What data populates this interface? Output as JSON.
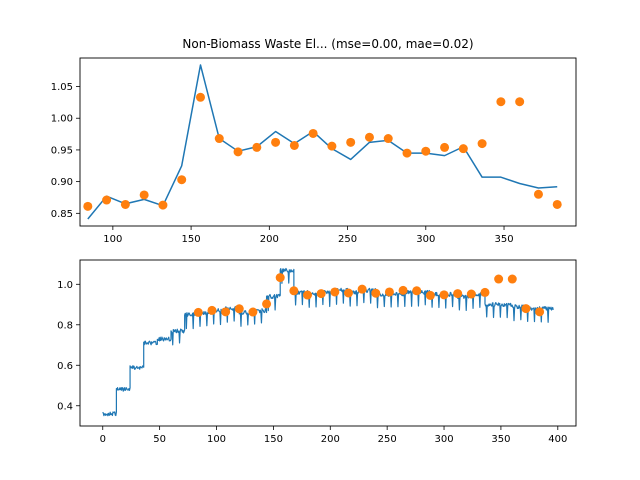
{
  "chart_data": [
    {
      "type": "line",
      "title": "Non-Biomass Waste El... (mse=0.00, mae=0.02)",
      "xlabel": "",
      "ylabel": "",
      "xlim": [
        79,
        396
      ],
      "ylim": [
        0.83,
        1.095
      ],
      "grid": false,
      "legend": "none",
      "xticks": [
        100,
        150,
        200,
        250,
        300,
        350
      ],
      "yticks": [
        0.85,
        0.9,
        0.95,
        1.0,
        1.05
      ],
      "ytick_labels": [
        "0.85",
        "0.90",
        "0.95",
        "1.00",
        "1.05"
      ],
      "series": [
        {
          "kind": "line",
          "color": "#1f77b4",
          "x": [
            84,
            96,
            108,
            120,
            132,
            144,
            156,
            168,
            180,
            192,
            204,
            216,
            228,
            240,
            252,
            264,
            276,
            288,
            300,
            312,
            324,
            336,
            348,
            360,
            372,
            384
          ],
          "y": [
            0.841,
            0.877,
            0.865,
            0.872,
            0.862,
            0.925,
            1.084,
            0.968,
            0.948,
            0.955,
            0.979,
            0.96,
            0.979,
            0.952,
            0.935,
            0.962,
            0.965,
            0.945,
            0.945,
            0.941,
            0.955,
            0.907,
            0.907,
            0.897,
            0.89,
            0.892
          ]
        },
        {
          "kind": "scatter",
          "color": "#ff7f0e",
          "x": [
            84,
            96,
            108,
            120,
            132,
            144,
            156,
            168,
            180,
            192,
            204,
            216,
            228,
            240,
            252,
            264,
            276,
            288,
            300,
            312,
            324,
            336,
            348,
            360,
            372,
            384
          ],
          "y": [
            0.861,
            0.871,
            0.864,
            0.879,
            0.863,
            0.903,
            1.033,
            0.968,
            0.947,
            0.954,
            0.962,
            0.957,
            0.976,
            0.956,
            0.962,
            0.97,
            0.968,
            0.945,
            0.948,
            0.954,
            0.952,
            0.96,
            1.026,
            1.026,
            0.88,
            0.864
          ]
        }
      ]
    },
    {
      "type": "line",
      "title": "",
      "xlabel": "",
      "ylabel": "",
      "xlim": [
        -20,
        416
      ],
      "ylim": [
        0.3,
        1.12
      ],
      "grid": false,
      "legend": "none",
      "xticks": [
        0,
        50,
        100,
        150,
        200,
        250,
        300,
        350,
        400
      ],
      "yticks": [
        0.4,
        0.6,
        0.8,
        1.0
      ],
      "ytick_labels": [
        "0.4",
        "0.6",
        "0.8",
        "1.0"
      ],
      "series": [
        {
          "kind": "line",
          "color": "#1f77b4",
          "segments": [
            {
              "x0": 0,
              "x1": 12,
              "y": 0.36
            },
            {
              "x0": 12,
              "x1": 24,
              "y": 0.48
            },
            {
              "x0": 24,
              "x1": 36,
              "y": 0.59
            },
            {
              "x0": 36,
              "x1": 48,
              "y": 0.71
            },
            {
              "x0": 48,
              "x1": 60,
              "y": 0.73
            },
            {
              "x0": 60,
              "x1": 72,
              "y": 0.77
            },
            {
              "x0": 72,
              "x1": 84,
              "y": 0.85
            },
            {
              "x0": 84,
              "x1": 96,
              "y": 0.86
            },
            {
              "x0": 96,
              "x1": 108,
              "y": 0.87
            },
            {
              "x0": 108,
              "x1": 120,
              "y": 0.88
            },
            {
              "x0": 120,
              "x1": 132,
              "y": 0.86
            },
            {
              "x0": 132,
              "x1": 144,
              "y": 0.87
            },
            {
              "x0": 144,
              "x1": 156,
              "y": 0.94
            },
            {
              "x0": 156,
              "x1": 168,
              "y": 1.07
            },
            {
              "x0": 168,
              "x1": 180,
              "y": 0.96
            },
            {
              "x0": 180,
              "x1": 192,
              "y": 0.95
            },
            {
              "x0": 192,
              "x1": 204,
              "y": 0.96
            },
            {
              "x0": 204,
              "x1": 216,
              "y": 0.97
            },
            {
              "x0": 216,
              "x1": 228,
              "y": 0.96
            },
            {
              "x0": 228,
              "x1": 240,
              "y": 0.97
            },
            {
              "x0": 240,
              "x1": 252,
              "y": 0.95
            },
            {
              "x0": 252,
              "x1": 264,
              "y": 0.95
            },
            {
              "x0": 264,
              "x1": 276,
              "y": 0.96
            },
            {
              "x0": 276,
              "x1": 288,
              "y": 0.96
            },
            {
              "x0": 288,
              "x1": 300,
              "y": 0.95
            },
            {
              "x0": 300,
              "x1": 312,
              "y": 0.95
            },
            {
              "x0": 312,
              "x1": 324,
              "y": 0.94
            },
            {
              "x0": 324,
              "x1": 336,
              "y": 0.95
            },
            {
              "x0": 336,
              "x1": 348,
              "y": 0.9
            },
            {
              "x0": 348,
              "x1": 360,
              "y": 0.9
            },
            {
              "x0": 360,
              "x1": 372,
              "y": 0.89
            },
            {
              "x0": 372,
              "x1": 384,
              "y": 0.88
            },
            {
              "x0": 384,
              "x1": 396,
              "y": 0.88
            }
          ]
        },
        {
          "kind": "scatter",
          "color": "#ff7f0e",
          "x": [
            84,
            96,
            108,
            120,
            132,
            144,
            156,
            168,
            180,
            192,
            204,
            216,
            228,
            240,
            252,
            264,
            276,
            288,
            300,
            312,
            324,
            336,
            348,
            360,
            372,
            384
          ],
          "y": [
            0.861,
            0.871,
            0.864,
            0.879,
            0.863,
            0.903,
            1.033,
            0.968,
            0.947,
            0.954,
            0.962,
            0.957,
            0.976,
            0.956,
            0.962,
            0.97,
            0.968,
            0.945,
            0.948,
            0.954,
            0.952,
            0.96,
            1.026,
            1.026,
            0.88,
            0.864
          ]
        }
      ]
    }
  ]
}
